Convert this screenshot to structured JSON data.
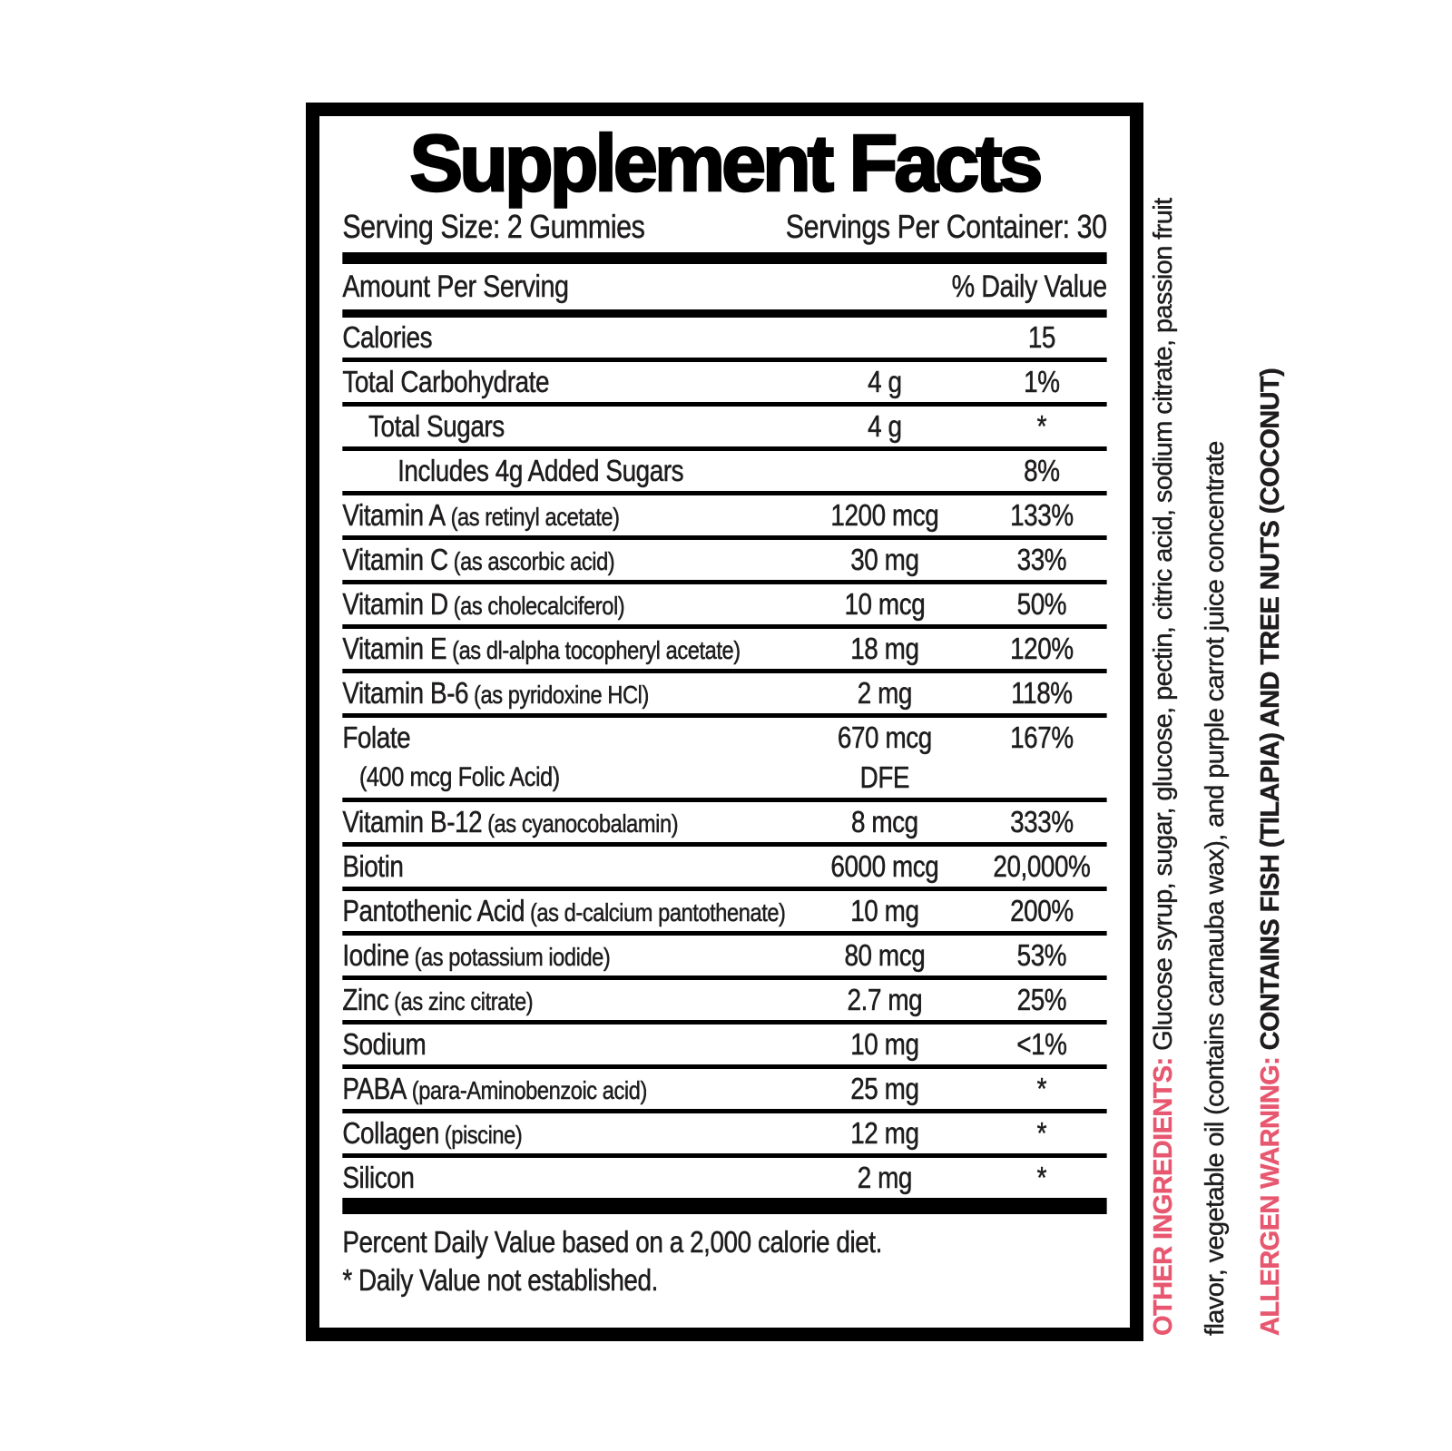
{
  "label": {
    "title": "Supplement Facts",
    "serving_size": "Serving Size: 2 Gummies",
    "servings_per_container": "Servings Per Container: 30",
    "amount_header": "Amount Per Serving",
    "dv_header": "% Daily Value",
    "rows": [
      {
        "name": "Calories",
        "amount": "",
        "dv": "15",
        "indent": 0
      },
      {
        "name": "Total Carbohydrate",
        "amount": "4 g",
        "dv": "1%",
        "indent": 0
      },
      {
        "name": "Total Sugars",
        "amount": "4 g",
        "dv": "*",
        "indent": 1
      },
      {
        "name": "Includes 4g Added Sugars",
        "amount": "",
        "dv": "8%",
        "indent": 2
      },
      {
        "name": "Vitamin A",
        "paren": "(as retinyl acetate)",
        "amount": "1200 mcg",
        "dv": "133%",
        "indent": 0
      },
      {
        "name": "Vitamin C",
        "paren": "(as ascorbic acid)",
        "amount": "30 mg",
        "dv": "33%",
        "indent": 0
      },
      {
        "name": "Vitamin D",
        "paren": "(as cholecalciferol)",
        "amount": "10 mcg",
        "dv": "50%",
        "indent": 0
      },
      {
        "name": "Vitamin E",
        "paren": "(as dl-alpha tocopheryl acetate)",
        "amount": "18 mg",
        "dv": "120%",
        "indent": 0
      },
      {
        "name": "Vitamin B-6",
        "paren": "(as pyridoxine HCl)",
        "amount": "2 mg",
        "dv": "118%",
        "indent": 0
      },
      {
        "name": "Folate",
        "name2": "(400 mcg Folic Acid)",
        "amount": "670 mcg",
        "amount2": "DFE",
        "dv": "167%",
        "indent": 0
      },
      {
        "name": "Vitamin B-12",
        "paren": "(as cyanocobalamin)",
        "amount": "8 mcg",
        "dv": "333%",
        "indent": 0
      },
      {
        "name": "Biotin",
        "amount": "6000 mcg",
        "dv": "20,000%",
        "indent": 0
      },
      {
        "name": "Pantothenic Acid",
        "paren": "(as d-calcium pantothenate)",
        "amount": "10 mg",
        "dv": "200%",
        "indent": 0
      },
      {
        "name": "Iodine",
        "paren": "(as potassium iodide)",
        "amount": "80 mcg",
        "dv": "53%",
        "indent": 0
      },
      {
        "name": "Zinc",
        "paren": "(as zinc citrate)",
        "amount": "2.7 mg",
        "dv": "25%",
        "indent": 0
      },
      {
        "name": "Sodium",
        "amount": "10 mg",
        "dv": "<1%",
        "indent": 0
      },
      {
        "name": "PABA",
        "paren": "(para-Aminobenzoic acid)",
        "amount": "25 mg",
        "dv": "*",
        "indent": 0
      },
      {
        "name": "Collagen",
        "paren": "(piscine)",
        "amount": "12 mg",
        "dv": "*",
        "indent": 0
      },
      {
        "name": "Silicon",
        "amount": "2 mg",
        "dv": "*",
        "indent": 0
      }
    ],
    "footnote_line1": "Percent Daily Value based on a 2,000 calorie diet.",
    "footnote_line2": "* Daily Value not established."
  },
  "side": {
    "accent_color": "#e75870",
    "other_ingredients_label": "OTHER INGREDIENTS:",
    "other_ingredients_line1": " Glucose syrup, sugar, glucose, pectin, citric acid, sodium citrate, passion fruit",
    "other_ingredients_line2": "flavor, vegetable oil (contains carnauba wax), and purple carrot juice concentrate",
    "allergen_label": "ALLERGEN WARNING:",
    "allergen_text": " CONTAINS FISH (TILAPIA) AND TREE NUTS (COCONUT)"
  }
}
